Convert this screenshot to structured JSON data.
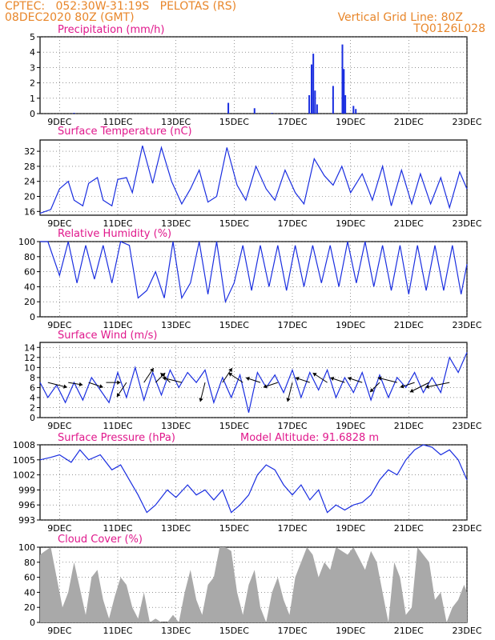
{
  "header": {
    "line1_left": "CPTEC:   052:30W-31:19S   PELOTAS (RS)",
    "line2_left": "08DEC2020 80Z (GMT)",
    "line2_right": "Vertical Grid Line: 80Z",
    "line3_right": "TQ0126L028"
  },
  "colors": {
    "header": "#e8862a",
    "title": "#e0188c",
    "series": "#1a2ee0",
    "cloud": "#a9a9a9",
    "wind_arrow": "#000000"
  },
  "chart_data": [
    {
      "type": "bar",
      "title": "Precipitation (mm/h)",
      "x_ticks": [
        "9DEC",
        "11DEC",
        "13DEC",
        "15DEC",
        "17DEC",
        "19DEC",
        "21DEC",
        "23DEC"
      ],
      "x_range_days": [
        8.33,
        23.0
      ],
      "ylim": [
        0,
        5
      ],
      "y_ticks": [
        "0",
        "1",
        "2",
        "3",
        "4",
        "5"
      ],
      "grid": true,
      "bars": [
        {
          "day": 9.5,
          "value": 0.05
        },
        {
          "day": 14.8,
          "value": 0.7
        },
        {
          "day": 15.7,
          "value": 0.35
        },
        {
          "day": 16.3,
          "value": 0.05
        },
        {
          "day": 17.58,
          "value": 1.2
        },
        {
          "day": 17.66,
          "value": 3.2
        },
        {
          "day": 17.72,
          "value": 3.9
        },
        {
          "day": 17.78,
          "value": 1.5
        },
        {
          "day": 17.85,
          "value": 0.6
        },
        {
          "day": 18.4,
          "value": 1.8
        },
        {
          "day": 18.72,
          "value": 4.5
        },
        {
          "day": 18.77,
          "value": 2.9
        },
        {
          "day": 18.82,
          "value": 1.2
        },
        {
          "day": 19.1,
          "value": 0.5
        },
        {
          "day": 19.18,
          "value": 0.3
        }
      ]
    },
    {
      "type": "line",
      "title": "Surface Temperature (nC)",
      "x_ticks": [
        "9DEC",
        "11DEC",
        "13DEC",
        "15DEC",
        "17DEC",
        "19DEC",
        "21DEC",
        "23DEC"
      ],
      "ylim": [
        15,
        35
      ],
      "y_ticks": [
        "16",
        "20",
        "24",
        "28",
        "32"
      ],
      "grid": true,
      "x": [
        8.33,
        8.7,
        9.0,
        9.3,
        9.5,
        9.8,
        10.0,
        10.3,
        10.5,
        10.8,
        11.0,
        11.3,
        11.5,
        11.85,
        12.2,
        12.5,
        12.85,
        13.2,
        13.5,
        13.8,
        14.1,
        14.4,
        14.75,
        15.1,
        15.4,
        15.75,
        16.1,
        16.4,
        16.75,
        17.1,
        17.4,
        17.75,
        18.1,
        18.4,
        18.7,
        19.0,
        19.4,
        19.75,
        20.1,
        20.4,
        20.75,
        21.1,
        21.4,
        21.75,
        22.1,
        22.4,
        22.75,
        23.0
      ],
      "y": [
        15.5,
        16.5,
        22,
        24,
        19,
        17.5,
        23.5,
        25,
        19,
        17.5,
        24.5,
        25,
        21,
        33.5,
        23.5,
        33,
        24,
        18,
        22,
        27,
        18.5,
        20,
        33,
        23,
        19,
        28,
        22,
        19,
        27,
        21,
        18,
        30,
        25.5,
        23,
        28,
        21,
        26,
        19,
        28,
        17.5,
        27,
        18,
        26,
        18,
        25,
        17,
        26.5,
        22
      ]
    },
    {
      "type": "line",
      "title": "Relative Humidity (%)",
      "x_ticks": [
        "9DEC",
        "11DEC",
        "13DEC",
        "15DEC",
        "17DEC",
        "19DEC",
        "21DEC",
        "23DEC"
      ],
      "ylim": [
        0,
        100
      ],
      "y_ticks": [
        "0",
        "20",
        "40",
        "60",
        "80",
        "100"
      ],
      "grid": true,
      "x": [
        8.33,
        8.6,
        9.0,
        9.3,
        9.6,
        9.9,
        10.2,
        10.5,
        10.8,
        11.1,
        11.4,
        11.7,
        12.0,
        12.3,
        12.6,
        12.9,
        13.2,
        13.5,
        13.8,
        14.1,
        14.4,
        14.7,
        15.0,
        15.3,
        15.6,
        15.9,
        16.2,
        16.5,
        16.8,
        17.1,
        17.4,
        17.7,
        18.0,
        18.3,
        18.6,
        18.9,
        19.2,
        19.5,
        19.8,
        20.1,
        20.4,
        20.7,
        21.0,
        21.3,
        21.6,
        21.9,
        22.2,
        22.5,
        22.8,
        23.0
      ],
      "y": [
        100,
        100,
        55,
        100,
        45,
        95,
        50,
        95,
        45,
        100,
        95,
        25,
        35,
        60,
        25,
        100,
        25,
        45,
        100,
        30,
        100,
        20,
        45,
        95,
        35,
        95,
        40,
        95,
        35,
        95,
        40,
        95,
        45,
        95,
        40,
        100,
        45,
        100,
        40,
        95,
        35,
        95,
        30,
        95,
        35,
        95,
        35,
        95,
        30,
        70
      ]
    },
    {
      "type": "line",
      "title": "Surface Wind (m/s)",
      "x_ticks": [
        "9DEC",
        "11DEC",
        "13DEC",
        "15DEC",
        "17DEC",
        "19DEC",
        "21DEC",
        "23DEC"
      ],
      "ylim": [
        0,
        15
      ],
      "y_ticks": [
        "0",
        "2",
        "4",
        "6",
        "8",
        "10",
        "12",
        "14"
      ],
      "grid": true,
      "x": [
        8.33,
        8.6,
        8.9,
        9.2,
        9.5,
        9.8,
        10.1,
        10.4,
        10.7,
        11.0,
        11.3,
        11.6,
        11.9,
        12.2,
        12.5,
        12.8,
        13.1,
        13.4,
        13.7,
        14.0,
        14.3,
        14.6,
        14.9,
        15.2,
        15.5,
        15.8,
        16.1,
        16.4,
        16.7,
        17.0,
        17.3,
        17.6,
        17.9,
        18.2,
        18.5,
        18.8,
        19.1,
        19.4,
        19.7,
        20.0,
        20.3,
        20.6,
        20.9,
        21.2,
        21.5,
        21.8,
        22.1,
        22.4,
        22.7,
        23.0
      ],
      "y": [
        7,
        4,
        6.5,
        3,
        7,
        3.5,
        8,
        5.5,
        3,
        9,
        4,
        10,
        3.5,
        9,
        4.5,
        9.5,
        6,
        9,
        7,
        9.5,
        3,
        8,
        4,
        8.5,
        1,
        9,
        6,
        8.5,
        5,
        9.5,
        4,
        9,
        5.5,
        9.5,
        4,
        8,
        5,
        9,
        3.5,
        8.5,
        4,
        8,
        6,
        9,
        5,
        8,
        5,
        12,
        9,
        13
      ],
      "wind_vectors": [
        {
          "day": 8.6,
          "u": 4,
          "v": -1
        },
        {
          "day": 9.3,
          "u": 3,
          "v": -0.5
        },
        {
          "day": 10.0,
          "u": 3,
          "v": -1
        },
        {
          "day": 10.6,
          "u": 3,
          "v": 0
        },
        {
          "day": 11.3,
          "u": -2,
          "v": -3
        },
        {
          "day": 11.9,
          "u": 2,
          "v": 3
        },
        {
          "day": 12.3,
          "u": 2,
          "v": 2
        },
        {
          "day": 12.8,
          "u": -2,
          "v": 2
        },
        {
          "day": 13.2,
          "u": -4,
          "v": 1
        },
        {
          "day": 14.0,
          "u": -1,
          "v": -4
        },
        {
          "day": 14.6,
          "u": 2,
          "v": 3
        },
        {
          "day": 15.3,
          "u": -3,
          "v": 2
        },
        {
          "day": 15.9,
          "u": -3,
          "v": 1
        },
        {
          "day": 16.5,
          "u": -3,
          "v": -1
        },
        {
          "day": 17.0,
          "u": -1,
          "v": -4
        },
        {
          "day": 17.6,
          "u": -3,
          "v": 1
        },
        {
          "day": 18.2,
          "u": -3,
          "v": 2
        },
        {
          "day": 18.8,
          "u": -3,
          "v": 1
        },
        {
          "day": 19.4,
          "u": -3,
          "v": 1
        },
        {
          "day": 20.0,
          "u": -2,
          "v": -2
        },
        {
          "day": 20.6,
          "u": -4,
          "v": 1
        },
        {
          "day": 21.2,
          "u": -3,
          "v": -1
        },
        {
          "day": 21.7,
          "u": -4,
          "v": -2
        },
        {
          "day": 22.4,
          "u": -5,
          "v": -1
        }
      ]
    },
    {
      "type": "line",
      "title": "Surface Pressure (hPa)",
      "subtitle": "Model Altitude: 91.6828 m",
      "x_ticks": [
        "9DEC",
        "11DEC",
        "13DEC",
        "15DEC",
        "17DEC",
        "19DEC",
        "21DEC",
        "23DEC"
      ],
      "ylim": [
        993,
        1008
      ],
      "y_ticks": [
        "993",
        "996",
        "999",
        "1002",
        "1005",
        "1008"
      ],
      "grid": true,
      "x": [
        8.33,
        8.7,
        9.0,
        9.4,
        9.7,
        10.0,
        10.4,
        10.8,
        11.1,
        11.4,
        11.7,
        12.0,
        12.3,
        12.7,
        13.0,
        13.4,
        13.7,
        14.0,
        14.3,
        14.6,
        14.9,
        15.2,
        15.5,
        15.8,
        16.1,
        16.4,
        16.7,
        17.0,
        17.3,
        17.6,
        17.9,
        18.2,
        18.5,
        18.8,
        19.1,
        19.4,
        19.7,
        20.0,
        20.3,
        20.6,
        20.9,
        21.2,
        21.5,
        21.8,
        22.1,
        22.4,
        22.7,
        23.0
      ],
      "y": [
        1005,
        1005.5,
        1006,
        1004.5,
        1007,
        1005,
        1006,
        1003,
        1004,
        1001,
        998,
        994.5,
        996,
        999,
        997.5,
        1000,
        998,
        999,
        997,
        999,
        994.5,
        996,
        998,
        1002,
        1004,
        1003,
        1000,
        998,
        1000,
        997,
        999,
        994.5,
        996,
        995,
        996,
        996.5,
        998,
        1001,
        1003,
        1002,
        1005,
        1007,
        1008,
        1007.5,
        1006,
        1007,
        1005,
        1001
      ]
    },
    {
      "type": "area",
      "title": "Cloud Cover (%)",
      "x_ticks": [
        "9DEC",
        "11DEC",
        "13DEC",
        "15DEC",
        "17DEC",
        "19DEC",
        "21DEC",
        "23DEC"
      ],
      "ylim": [
        0,
        100
      ],
      "y_ticks": [
        "0",
        "20",
        "40",
        "60",
        "80",
        "100"
      ],
      "grid": true,
      "x": [
        8.33,
        8.5,
        8.7,
        8.9,
        9.1,
        9.3,
        9.5,
        9.7,
        9.9,
        10.1,
        10.3,
        10.5,
        10.7,
        10.9,
        11.1,
        11.3,
        11.5,
        11.7,
        11.9,
        12.1,
        12.3,
        12.5,
        12.7,
        12.9,
        13.1,
        13.3,
        13.5,
        13.7,
        13.9,
        14.1,
        14.3,
        14.5,
        14.7,
        14.9,
        15.1,
        15.3,
        15.5,
        15.7,
        15.9,
        16.1,
        16.3,
        16.5,
        16.7,
        16.9,
        17.1,
        17.3,
        17.5,
        17.7,
        17.9,
        18.1,
        18.3,
        18.5,
        18.7,
        18.9,
        19.1,
        19.3,
        19.5,
        19.7,
        19.9,
        20.1,
        20.3,
        20.5,
        20.7,
        20.9,
        21.1,
        21.3,
        21.5,
        21.7,
        21.9,
        22.1,
        22.3,
        22.5,
        22.7,
        22.9,
        23.0
      ],
      "y": [
        90,
        95,
        100,
        60,
        20,
        40,
        80,
        45,
        10,
        60,
        70,
        30,
        5,
        35,
        60,
        50,
        20,
        5,
        40,
        0,
        5,
        0,
        0,
        10,
        0,
        40,
        70,
        30,
        10,
        50,
        60,
        100,
        100,
        95,
        40,
        10,
        50,
        70,
        20,
        0,
        40,
        60,
        30,
        10,
        60,
        80,
        100,
        90,
        60,
        80,
        70,
        100,
        95,
        90,
        100,
        85,
        70,
        95,
        80,
        40,
        0,
        80,
        60,
        10,
        20,
        100,
        90,
        80,
        30,
        40,
        0,
        20,
        30,
        50,
        40
      ]
    }
  ]
}
